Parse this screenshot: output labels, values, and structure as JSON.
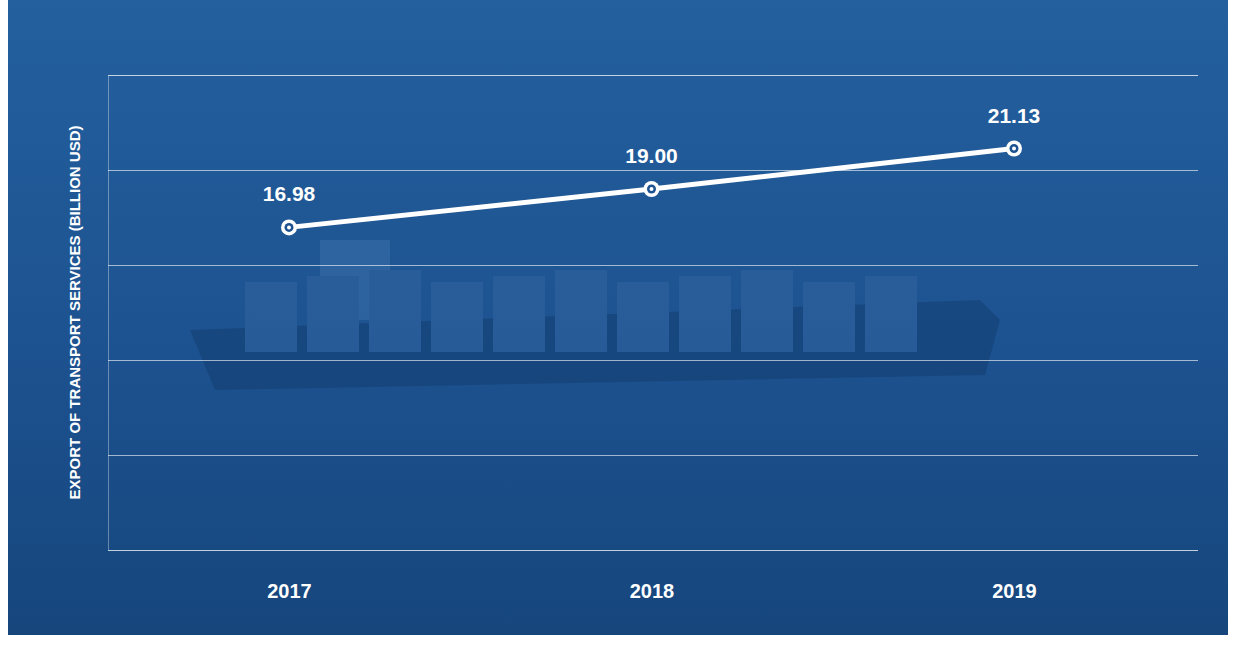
{
  "chart_data": {
    "type": "line",
    "y_label": "EXPORT OF TRANSPORT SERVICES (BILLION USD)",
    "categories": [
      "2017",
      "2018",
      "2019"
    ],
    "values": [
      16.98,
      19.0,
      21.13
    ],
    "value_labels": [
      "16.98",
      "19.00",
      "21.13"
    ],
    "data_labels": true,
    "color": "#ffffff",
    "marker": "circle",
    "ylim": [
      0,
      25
    ],
    "yticks": [
      0,
      5,
      10,
      15,
      20,
      25
    ],
    "grid": true,
    "tick_labels": "x"
  }
}
